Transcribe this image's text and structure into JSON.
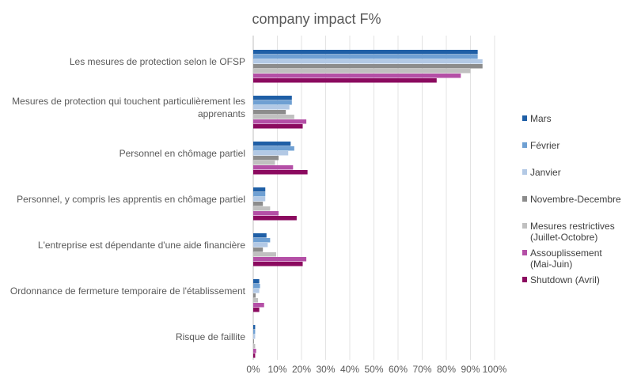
{
  "chart_data": {
    "type": "bar",
    "orientation": "horizontal",
    "title": "company impact F%",
    "xlabel": "",
    "ylabel": "",
    "xlim": [
      0,
      100
    ],
    "x_ticks": [
      "0%",
      "10%",
      "20%",
      "30%",
      "40%",
      "50%",
      "60%",
      "70%",
      "80%",
      "90%",
      "100%"
    ],
    "grid": "vertical",
    "legend_position": "right",
    "categories": [
      [
        "Les mesures de protection selon le OFSP"
      ],
      [
        "Mesures de protection qui touchent particulièrement les",
        "apprenants"
      ],
      [
        "Personnel en chômage partiel"
      ],
      [
        "Personnel, y compris les apprentis en chômage partiel"
      ],
      [
        "L'entreprise est dépendante d'une aide financière"
      ],
      [
        "Ordonnance de fermeture temporaire de l'établissement"
      ],
      [
        "Risque de faillite"
      ]
    ],
    "series": [
      {
        "name": [
          "Mars"
        ],
        "color": "#1F5FA6",
        "values": [
          93,
          16,
          15.5,
          5,
          5.5,
          2.5,
          0.8
        ]
      },
      {
        "name": [
          "Février"
        ],
        "color": "#6FA0D3",
        "values": [
          93,
          16,
          17,
          5,
          7,
          2.8,
          0.8
        ]
      },
      {
        "name": [
          "Janvier"
        ],
        "color": "#B3C9E5",
        "values": [
          95,
          15,
          14.5,
          5,
          6,
          2.5,
          0.8
        ]
      },
      {
        "name": [
          "Novembre-Decembre"
        ],
        "color": "#8C8C8C",
        "values": [
          95,
          13.5,
          10.5,
          4,
          4,
          1,
          0.3
        ]
      },
      {
        "name": [
          "Mesures restrictives",
          "(Juillet-Octobre)"
        ],
        "color": "#C0C0C0",
        "values": [
          90,
          17,
          9,
          7,
          9.5,
          2,
          0.8
        ]
      },
      {
        "name": [
          "Assouplissement",
          "(Mai-Juin)"
        ],
        "color": "#B44FA6",
        "values": [
          86,
          22,
          16.5,
          10.5,
          22,
          4.5,
          1.2
        ]
      },
      {
        "name": [
          "Shutdown (Avril)"
        ],
        "color": "#8B0A5F",
        "values": [
          76,
          20.5,
          22.5,
          18,
          20.5,
          2.5,
          0.8
        ]
      }
    ]
  }
}
